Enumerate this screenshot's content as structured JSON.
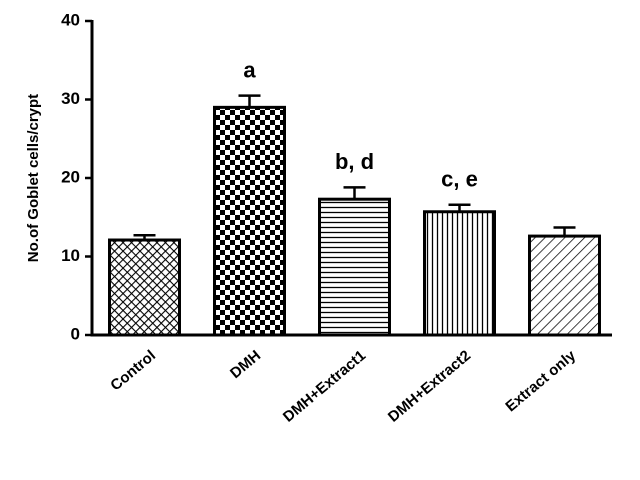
{
  "chart_data": {
    "type": "bar",
    "y_label": "No.of  Goblet cells/crypt",
    "categories": [
      "Control",
      "DMH",
      "DMH+Extract1",
      "DMH+Extract2",
      "Extract only"
    ],
    "values": [
      12.1,
      29.0,
      17.3,
      15.7,
      12.6
    ],
    "errors": [
      0.6,
      1.5,
      1.5,
      0.9,
      1.1
    ],
    "value_annotations": [
      null,
      "a",
      "b, d",
      "c, e",
      null
    ],
    "patterns": [
      "crosshatch",
      "checker",
      "horizontal",
      "vertical",
      "diagonal"
    ],
    "color": "#000000",
    "ylim": [
      0,
      40
    ],
    "yticks": [
      0,
      10,
      20,
      30,
      40
    ]
  }
}
